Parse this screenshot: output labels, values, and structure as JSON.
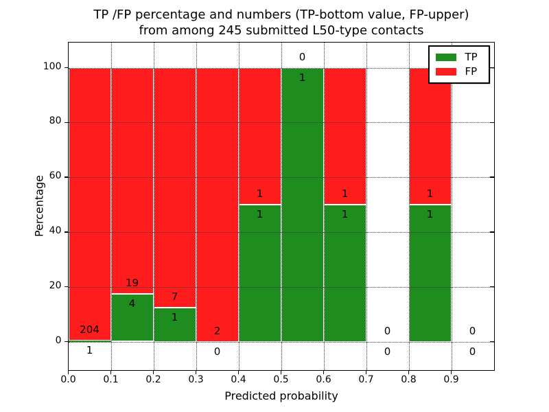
{
  "figure": {
    "title_line1": "TP /FP percentage and numbers (TP-bottom value, FP-upper)",
    "title_line2": "from among 245 submitted L50-type contacts"
  },
  "chart_data": {
    "type": "bar",
    "subtype": "stacked-percentage-histogram",
    "title": "TP /FP percentage and numbers (TP-bottom value, FP-upper) from among 245 submitted L50-type contacts",
    "xlabel": "Predicted probability",
    "ylabel": "Percentage",
    "total_contacts": 245,
    "xlim": [
      0.0,
      1.0
    ],
    "ylim": [
      -10,
      110
    ],
    "xtick_labels": [
      "0.0",
      "0.1",
      "0.2",
      "0.3",
      "0.4",
      "0.5",
      "0.6",
      "0.7",
      "0.8",
      "0.9"
    ],
    "ytick_labels": [
      "0",
      "20",
      "40",
      "60",
      "80",
      "100"
    ],
    "ytick_values": [
      0,
      20,
      40,
      60,
      80,
      100
    ],
    "grid": {
      "style": "dotted",
      "axes": "both",
      "drawn_over_bars": true
    },
    "colors": {
      "tp": "#1e8c1e",
      "fp": "#ff1c1c",
      "bar_edge": "#ffffff"
    },
    "legend": {
      "position": "upper-right",
      "entries": [
        {
          "label": "TP",
          "color": "#1e8c1e"
        },
        {
          "label": "FP",
          "color": "#ff1c1c"
        }
      ]
    },
    "bins": [
      {
        "range": [
          0.0,
          0.1
        ],
        "tp": 1,
        "fp": 204
      },
      {
        "range": [
          0.1,
          0.2
        ],
        "tp": 4,
        "fp": 19
      },
      {
        "range": [
          0.2,
          0.3
        ],
        "tp": 1,
        "fp": 7
      },
      {
        "range": [
          0.3,
          0.4
        ],
        "tp": 0,
        "fp": 2
      },
      {
        "range": [
          0.4,
          0.5
        ],
        "tp": 1,
        "fp": 1
      },
      {
        "range": [
          0.5,
          0.6
        ],
        "tp": 1,
        "fp": 0
      },
      {
        "range": [
          0.6,
          0.7
        ],
        "tp": 1,
        "fp": 1
      },
      {
        "range": [
          0.7,
          0.8
        ],
        "tp": 0,
        "fp": 0
      },
      {
        "range": [
          0.8,
          0.9
        ],
        "tp": 1,
        "fp": 1
      },
      {
        "range": [
          0.9,
          1.0
        ],
        "tp": 0,
        "fp": 0
      }
    ],
    "bar_label_rule": "FP count printed above TP/FP boundary, TP count printed below boundary; boundary is at TP percentage of each bin (0 for empty bins)"
  }
}
